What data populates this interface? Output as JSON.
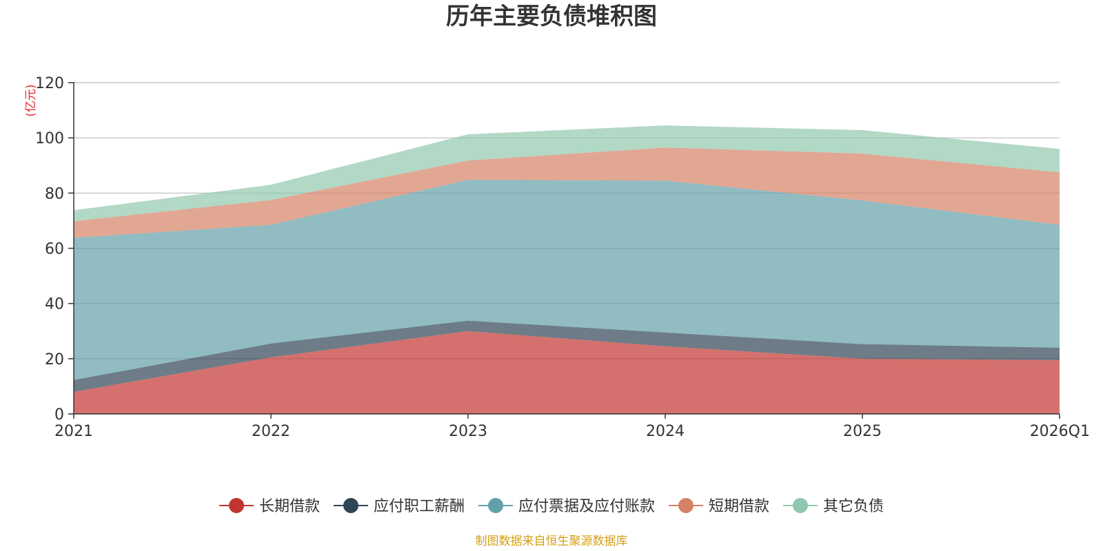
{
  "chart_data": {
    "type": "area",
    "stacked": true,
    "title": "历年主要负债堆积图",
    "unit_label": "(亿元)",
    "categories": [
      "2021",
      "2022",
      "2023",
      "2024",
      "2025",
      "2026Q1"
    ],
    "ylim": [
      0,
      120
    ],
    "yticks": [
      0,
      20,
      40,
      60,
      80,
      100,
      120
    ],
    "grid": true,
    "legend_position": "bottom-center",
    "series": [
      {
        "name": "长期借款",
        "color": "#c23531",
        "values": [
          8,
          20.5,
          30,
          24.5,
          20,
          19.5
        ]
      },
      {
        "name": "应付职工薪酬",
        "color": "#2f4554",
        "values": [
          4.3,
          5,
          3.8,
          5,
          5.3,
          4.5
        ]
      },
      {
        "name": "应付票据及应付账款",
        "color": "#61a0a8",
        "values": [
          51.5,
          43,
          51,
          55,
          52,
          44.5
        ]
      },
      {
        "name": "短期借款",
        "color": "#d48265",
        "values": [
          6,
          9,
          7,
          12,
          17,
          19
        ]
      },
      {
        "name": "其它负债",
        "color": "#91c7ae",
        "values": [
          4,
          5.5,
          9.5,
          8,
          8.5,
          8.5
        ]
      }
    ]
  },
  "source_note": "制图数据来自恒生聚源数据库"
}
